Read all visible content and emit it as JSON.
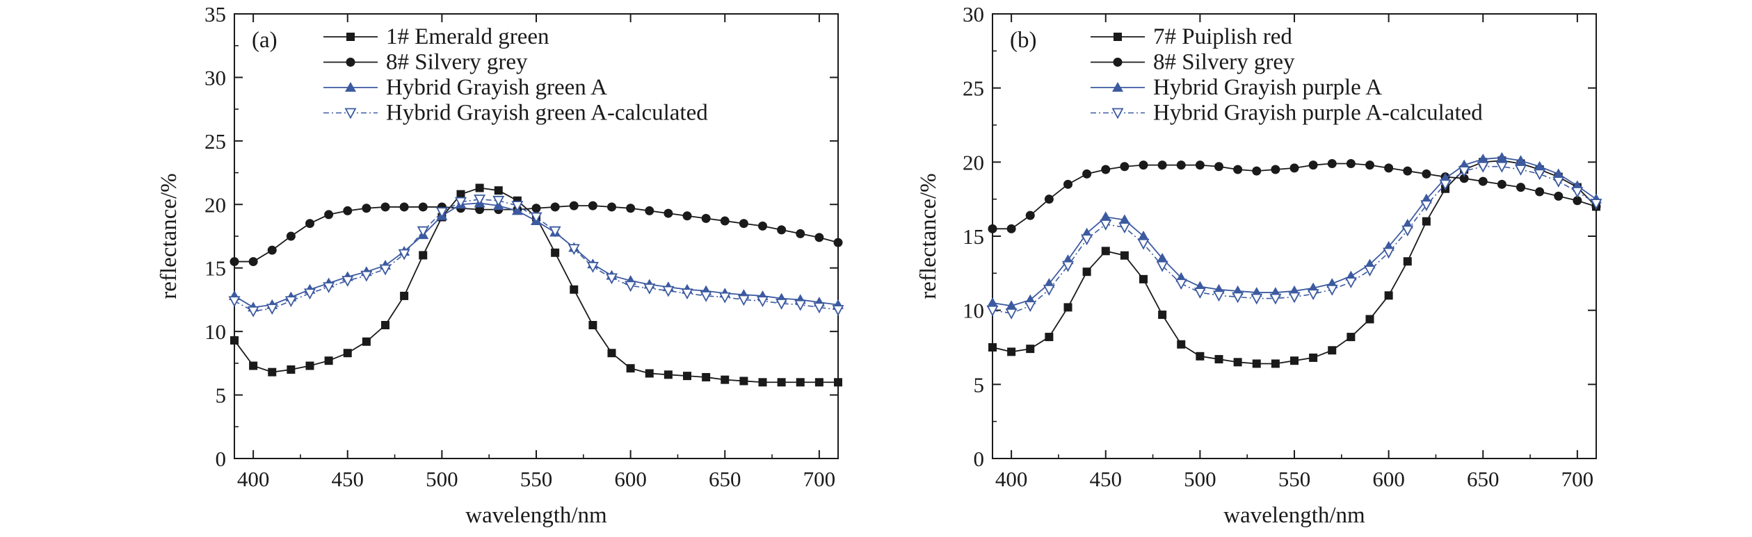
{
  "chart_data": [
    {
      "type": "line",
      "panel_label": "(a)",
      "xlabel": "wavelength/nm",
      "ylabel": "reflectance/%",
      "xlim": [
        390,
        710
      ],
      "ylim": [
        0,
        35
      ],
      "xticks": [
        400,
        450,
        500,
        550,
        600,
        650,
        700
      ],
      "yticks": [
        0,
        5,
        10,
        15,
        20,
        25,
        30,
        35
      ],
      "legend_position": "top-left",
      "grid": false,
      "x": [
        390,
        400,
        410,
        420,
        430,
        440,
        450,
        460,
        470,
        480,
        490,
        500,
        510,
        520,
        530,
        540,
        550,
        560,
        570,
        580,
        590,
        600,
        610,
        620,
        630,
        640,
        650,
        660,
        670,
        680,
        690,
        700,
        710
      ],
      "series": [
        {
          "name": "1# Emerald green",
          "marker": "square-filled",
          "color": "#1a1a1a",
          "dashed": false,
          "values": [
            9.3,
            7.3,
            6.8,
            7.0,
            7.3,
            7.7,
            8.3,
            9.2,
            10.5,
            12.8,
            16.0,
            19.0,
            20.8,
            21.3,
            21.1,
            20.3,
            19.0,
            16.2,
            13.3,
            10.5,
            8.3,
            7.1,
            6.7,
            6.6,
            6.5,
            6.4,
            6.2,
            6.1,
            6.0,
            6.0,
            6.0,
            6.0,
            6.0
          ]
        },
        {
          "name": "8# Silvery grey",
          "marker": "circle-filled",
          "color": "#1a1a1a",
          "dashed": false,
          "values": [
            15.5,
            15.5,
            16.4,
            17.5,
            18.5,
            19.2,
            19.5,
            19.7,
            19.8,
            19.8,
            19.8,
            19.8,
            19.7,
            19.6,
            19.6,
            19.6,
            19.7,
            19.8,
            19.9,
            19.9,
            19.8,
            19.7,
            19.5,
            19.3,
            19.1,
            18.9,
            18.7,
            18.5,
            18.3,
            18.0,
            17.7,
            17.4,
            17.0
          ]
        },
        {
          "name": "Hybrid Grayish green A",
          "marker": "triangle-up-filled",
          "color": "#3c5aa0",
          "dashed": false,
          "values": [
            12.8,
            11.9,
            12.1,
            12.7,
            13.3,
            13.8,
            14.3,
            14.7,
            15.2,
            16.3,
            17.6,
            19.1,
            20.0,
            20.1,
            19.9,
            19.5,
            18.7,
            17.8,
            16.6,
            15.3,
            14.4,
            14.0,
            13.7,
            13.5,
            13.3,
            13.2,
            13.0,
            12.9,
            12.8,
            12.6,
            12.5,
            12.3,
            12.1
          ]
        },
        {
          "name": "Hybrid Grayish green A-calculated",
          "marker": "triangle-down-open",
          "color": "#3c5aa0",
          "dashed": true,
          "values": [
            12.4,
            11.6,
            11.8,
            12.4,
            13.0,
            13.5,
            14.0,
            14.4,
            14.9,
            16.1,
            17.9,
            19.4,
            20.2,
            20.4,
            20.3,
            19.9,
            19.0,
            17.9,
            16.5,
            15.1,
            14.2,
            13.6,
            13.4,
            13.2,
            13.0,
            12.8,
            12.7,
            12.5,
            12.4,
            12.2,
            12.1,
            11.9,
            11.7
          ]
        }
      ]
    },
    {
      "type": "line",
      "panel_label": "(b)",
      "xlabel": "wavelength/nm",
      "ylabel": "reflectance/%",
      "xlim": [
        390,
        710
      ],
      "ylim": [
        0,
        30
      ],
      "xticks": [
        400,
        450,
        500,
        550,
        600,
        650,
        700
      ],
      "yticks": [
        0,
        5,
        10,
        15,
        20,
        25,
        30
      ],
      "legend_position": "top-left",
      "grid": false,
      "x": [
        390,
        400,
        410,
        420,
        430,
        440,
        450,
        460,
        470,
        480,
        490,
        500,
        510,
        520,
        530,
        540,
        550,
        560,
        570,
        580,
        590,
        600,
        610,
        620,
        630,
        640,
        650,
        660,
        670,
        680,
        690,
        700,
        710
      ],
      "series": [
        {
          "name": "7# Puiplish red",
          "marker": "square-filled",
          "color": "#1a1a1a",
          "dashed": false,
          "values": [
            7.5,
            7.2,
            7.4,
            8.2,
            10.2,
            12.6,
            14.0,
            13.7,
            12.1,
            9.7,
            7.7,
            6.9,
            6.7,
            6.5,
            6.4,
            6.4,
            6.6,
            6.8,
            7.3,
            8.2,
            9.4,
            11.0,
            13.3,
            16.0,
            18.2,
            19.5,
            20.0,
            20.1,
            19.9,
            19.5,
            19.0,
            18.3,
            17.0
          ]
        },
        {
          "name": "8# Silvery grey",
          "marker": "circle-filled",
          "color": "#1a1a1a",
          "dashed": false,
          "values": [
            15.5,
            15.5,
            16.4,
            17.5,
            18.5,
            19.2,
            19.5,
            19.7,
            19.8,
            19.8,
            19.8,
            19.8,
            19.7,
            19.5,
            19.4,
            19.5,
            19.6,
            19.8,
            19.9,
            19.9,
            19.8,
            19.6,
            19.4,
            19.2,
            19.0,
            18.9,
            18.7,
            18.5,
            18.3,
            18.0,
            17.7,
            17.4,
            17.0
          ]
        },
        {
          "name": "Hybrid Grayish purple A",
          "marker": "triangle-up-filled",
          "color": "#3c5aa0",
          "dashed": false,
          "values": [
            10.5,
            10.3,
            10.7,
            11.8,
            13.4,
            15.2,
            16.3,
            16.1,
            15.0,
            13.5,
            12.2,
            11.6,
            11.4,
            11.3,
            11.2,
            11.2,
            11.3,
            11.5,
            11.8,
            12.3,
            13.1,
            14.3,
            15.8,
            17.5,
            18.9,
            19.8,
            20.2,
            20.3,
            20.1,
            19.7,
            19.2,
            18.4,
            17.5
          ]
        },
        {
          "name": "Hybrid Grayish purple A-calculated",
          "marker": "triangle-down-open",
          "color": "#3c5aa0",
          "dashed": true,
          "values": [
            10.0,
            9.8,
            10.3,
            11.4,
            13.0,
            14.8,
            15.8,
            15.6,
            14.5,
            13.0,
            11.8,
            11.2,
            11.0,
            10.9,
            10.8,
            10.8,
            10.9,
            11.1,
            11.4,
            11.9,
            12.7,
            13.9,
            15.4,
            17.1,
            18.5,
            19.4,
            19.7,
            19.7,
            19.5,
            19.2,
            18.7,
            18.0,
            17.2
          ]
        }
      ]
    }
  ]
}
